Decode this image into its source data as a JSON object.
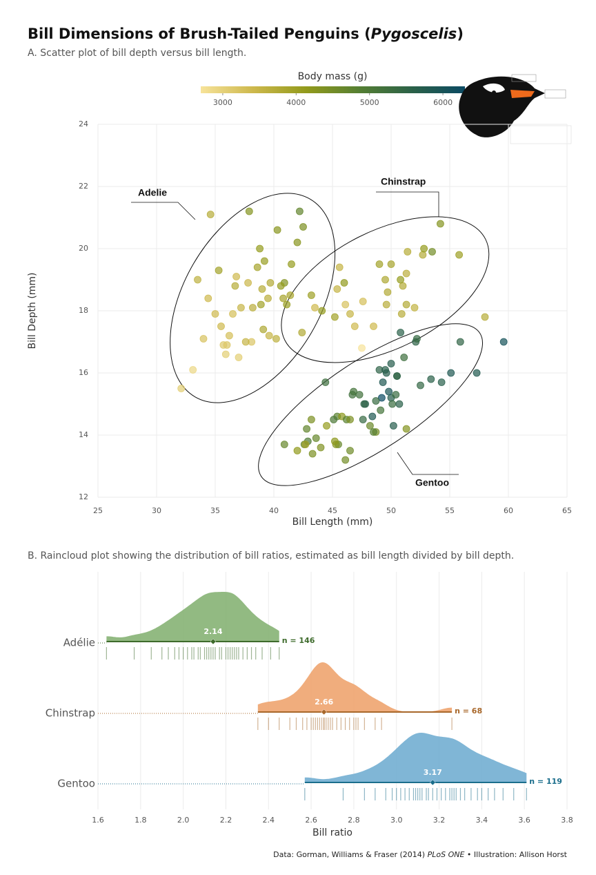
{
  "title_parts": [
    "Bill Dimensions of Brush-Tailed Penguins (",
    "Pygoscelis",
    ")"
  ],
  "caption_parts": [
    "Data: Gorman, Williams & Fraser (2014) ",
    "PLoS ONE",
    " • Illustration:  Allison Horst"
  ],
  "chart_data": [
    {
      "type": "scatter",
      "subtitle": "A. Scatter plot of bill depth versus bill length.",
      "x_label": "Bill Length (mm)",
      "y_label": "Bill Depth (mm)",
      "xlim": [
        25,
        65
      ],
      "xticks": [
        25,
        30,
        35,
        40,
        45,
        50,
        55,
        60,
        65
      ],
      "ylim": [
        12,
        24
      ],
      "yticks": [
        12,
        14,
        16,
        18,
        20,
        22,
        24
      ],
      "grid": true,
      "colorbar": {
        "title": "Body mass (g)",
        "range": [
          2700,
          6300
        ],
        "ticks": [
          3000,
          4000,
          5000,
          6000
        ],
        "colors": [
          "#f7e39a",
          "#cdb84c",
          "#929a1c",
          "#557f33",
          "#2b6148",
          "#0b4a63"
        ]
      },
      "series": [
        {
          "name": "Adelie",
          "x": [
            34.6,
            37.8,
            39.1,
            38.8,
            41.1,
            36.2,
            35.3,
            39.5,
            40.3,
            42.0,
            37.2,
            38.6,
            34.4,
            36.0,
            40.9,
            39.2,
            35.9,
            33.5,
            38.1,
            41.4,
            36.7,
            39.6,
            37.9,
            40.6,
            32.1,
            35.0,
            42.5,
            38.9,
            36.5,
            40.2,
            37.0,
            34.0,
            41.5,
            39.0,
            36.8,
            43.2,
            35.7,
            38.2,
            33.1,
            40.8,
            37.6,
            42.2,
            39.7,
            35.5,
            44.1
          ],
          "values": [
            21.1,
            18.9,
            17.4,
            20.0,
            18.2,
            17.2,
            19.3,
            18.4,
            20.6,
            20.2,
            18.1,
            19.4,
            18.4,
            16.9,
            18.9,
            19.6,
            16.6,
            19.0,
            17.0,
            18.5,
            18.8,
            17.2,
            21.2,
            18.8,
            15.5,
            17.9,
            20.7,
            18.2,
            17.9,
            17.1,
            16.5,
            17.1,
            19.5,
            18.7,
            19.1,
            18.5,
            16.9,
            18.1,
            16.1,
            18.4,
            17.0,
            21.2,
            18.9,
            17.5,
            18.0
          ],
          "mass": [
            3700,
            3450,
            3800,
            4100,
            4050,
            3300,
            3950,
            3650,
            4250,
            4250,
            3500,
            3900,
            3400,
            3200,
            4300,
            4050,
            3050,
            3600,
            3200,
            3850,
            3700,
            3500,
            4300,
            4100,
            3050,
            3400,
            4400,
            3950,
            3300,
            3600,
            3050,
            3250,
            4100,
            3700,
            3400,
            4000,
            3150,
            3650,
            2900,
            3900,
            3500,
            4700,
            3750,
            3400,
            4100
          ]
        },
        {
          "name": "Chinstrap",
          "x": [
            46.5,
            50.0,
            51.3,
            45.4,
            52.7,
            45.2,
            46.1,
            51.3,
            46.0,
            51.4,
            49.5,
            42.4,
            52.8,
            54.2,
            51.0,
            49.7,
            47.5,
            47.6,
            52.0,
            46.9,
            53.5,
            49.0,
            58.0,
            50.9,
            45.6,
            55.8,
            43.5,
            49.6,
            50.8,
            48.5
          ],
          "values": [
            17.9,
            19.5,
            19.2,
            18.7,
            19.8,
            17.8,
            18.2,
            18.2,
            18.9,
            19.9,
            19.0,
            17.3,
            20.0,
            20.8,
            18.8,
            18.6,
            16.8,
            18.3,
            18.1,
            17.5,
            19.9,
            19.5,
            17.8,
            17.9,
            19.4,
            19.8,
            18.1,
            18.2,
            19.0,
            17.5
          ],
          "mass": [
            3500,
            3900,
            3650,
            3525,
            3725,
            3950,
            3250,
            3750,
            4150,
            3700,
            3800,
            3775,
            4100,
            4300,
            3725,
            3750,
            2700,
            3300,
            3550,
            3400,
            4500,
            3950,
            3700,
            3675,
            3525,
            4000,
            3400,
            3675,
            4100,
            3400
          ]
        },
        {
          "name": "Gentoo",
          "x": [
            46.1,
            50.0,
            48.7,
            50.0,
            47.6,
            46.5,
            45.4,
            46.7,
            43.3,
            46.8,
            40.9,
            49.0,
            45.5,
            48.4,
            45.8,
            49.3,
            42.0,
            49.2,
            46.2,
            48.7,
            50.2,
            45.1,
            46.5,
            42.9,
            44.5,
            47.8,
            48.2,
            47.3,
            42.8,
            59.6,
            49.1,
            42.6,
            44.4,
            44.0,
            42.7,
            49.6,
            45.3,
            50.5,
            43.6,
            50.5,
            45.2,
            48.5,
            50.1,
            43.2,
            50.4,
            54.3,
            49.8,
            49.5,
            50.7,
            47.7,
            51.1,
            52.5,
            50.8,
            51.3,
            52.1,
            52.2,
            55.9,
            53.4,
            57.3,
            55.1
          ],
          "values": [
            13.2,
            16.3,
            14.1,
            15.2,
            14.5,
            13.5,
            14.6,
            15.3,
            13.4,
            15.4,
            13.7,
            16.1,
            13.7,
            14.6,
            14.6,
            15.7,
            13.5,
            15.2,
            14.5,
            15.1,
            14.3,
            14.5,
            14.5,
            13.8,
            14.3,
            15.0,
            14.3,
            15.3,
            14.2,
            17.0,
            14.8,
            13.7,
            15.7,
            13.6,
            13.7,
            16.0,
            13.7,
            15.9,
            13.9,
            15.9,
            13.8,
            14.1,
            15.0,
            14.5,
            15.3,
            15.7,
            15.4,
            16.1,
            15.0,
            15.0,
            16.5,
            15.6,
            17.3,
            14.2,
            17.0,
            17.1,
            17.0,
            15.8,
            16.0,
            16.0
          ],
          "mass": [
            4500,
            5700,
            4450,
            5700,
            5400,
            4550,
            4800,
            5200,
            4400,
            5150,
            4650,
            5550,
            4650,
            5850,
            4200,
            5850,
            4150,
            6300,
            4800,
            5350,
            5700,
            5000,
            4400,
            4950,
            4100,
            5650,
            4600,
            5200,
            4700,
            6050,
            5150,
            4700,
            5250,
            4350,
            3950,
            5700,
            4300,
            5400,
            4650,
            5550,
            4200,
            4850,
            5300,
            4400,
            5350,
            5650,
            5950,
            5650,
            5600,
            5550,
            5250,
            5450,
            5600,
            4300,
            5550,
            5400,
            5500,
            5600,
            5800,
            5850
          ]
        }
      ]
    },
    {
      "type": "raincloud",
      "subtitle": "B. Raincloud plot showing the distribution of bill ratios, estimated as bill length divided by bill depth.",
      "x_label": "Bill ratio",
      "xlim": [
        1.6,
        3.8
      ],
      "xticks": [
        1.6,
        1.8,
        {
          "value": 2,
          "label": "2.0"
        },
        2.2,
        2.4,
        2.6,
        2.8,
        {
          "value": 3,
          "label": "3.0"
        },
        3.2,
        3.4,
        3.6,
        3.8
      ],
      "grid": true,
      "categories": [
        "Adélie",
        "Chinstrap",
        "Gentoo"
      ],
      "series": [
        {
          "color": "#86b274",
          "line_color": "#3e6b2c",
          "median": 2.14,
          "n": 146,
          "n_label": "n = 146",
          "ratios": [
            1.64,
            1.77,
            1.85,
            1.9,
            1.93,
            1.96,
            1.98,
            2.0,
            2.02,
            2.04,
            2.05,
            2.07,
            2.08,
            2.1,
            2.11,
            2.12,
            2.13,
            2.14,
            2.15,
            2.17,
            2.18,
            2.2,
            2.21,
            2.22,
            2.23,
            2.24,
            2.25,
            2.26,
            2.28,
            2.3,
            2.32,
            2.34,
            2.37,
            2.41,
            2.45
          ]
        },
        {
          "color": "#eea46f",
          "line_color": "#a8672a",
          "median": 2.66,
          "n": 68,
          "n_label": "n = 68",
          "ratios": [
            2.35,
            2.4,
            2.45,
            2.5,
            2.53,
            2.56,
            2.58,
            2.6,
            2.61,
            2.62,
            2.63,
            2.64,
            2.65,
            2.66,
            2.66,
            2.67,
            2.68,
            2.69,
            2.7,
            2.72,
            2.74,
            2.76,
            2.78,
            2.8,
            2.81,
            2.82,
            2.85,
            2.9,
            2.93,
            3.26
          ]
        },
        {
          "color": "#72aed1",
          "line_color": "#1b6e8c",
          "median": 3.17,
          "n": 119,
          "n_label": "n = 119",
          "ratios": [
            2.57,
            2.75,
            2.85,
            2.9,
            2.95,
            2.98,
            3.0,
            3.02,
            3.04,
            3.06,
            3.08,
            3.09,
            3.1,
            3.11,
            3.12,
            3.14,
            3.15,
            3.17,
            3.19,
            3.21,
            3.23,
            3.25,
            3.26,
            3.27,
            3.28,
            3.3,
            3.32,
            3.35,
            3.38,
            3.4,
            3.43,
            3.46,
            3.5,
            3.55,
            3.61
          ]
        }
      ]
    }
  ]
}
